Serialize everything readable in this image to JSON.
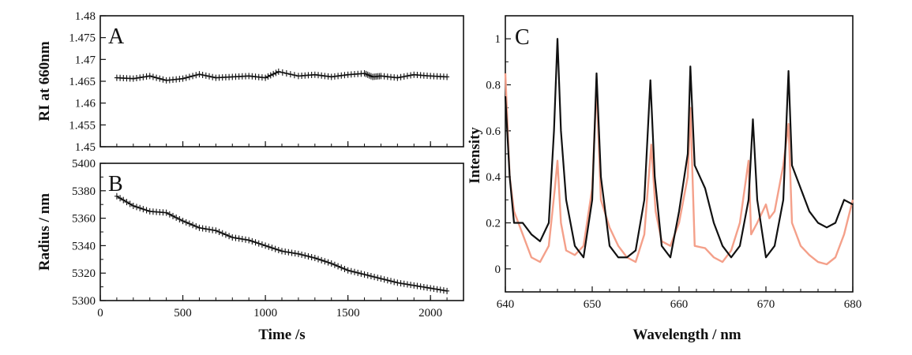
{
  "colors": {
    "black": "#111111",
    "salmon": "#f4a08a"
  },
  "chart_data": [
    {
      "panel": "A",
      "type": "scatter",
      "marker": "plus-line",
      "xlim": [
        0,
        2200
      ],
      "ylim": [
        1.45,
        1.48
      ],
      "yticks": [
        "1.45",
        "1.455",
        "1.46",
        "1.465",
        "1.47",
        "1.475",
        "1.48"
      ],
      "xlabel": "",
      "ylabel": "RI at 660nm",
      "x": [
        100,
        200,
        300,
        400,
        500,
        600,
        700,
        800,
        900,
        1000,
        1080,
        1200,
        1300,
        1400,
        1500,
        1600,
        1650,
        1700,
        1800,
        1900,
        2000,
        2100
      ],
      "y": [
        1.4658,
        1.4656,
        1.4662,
        1.4652,
        1.4656,
        1.4666,
        1.4658,
        1.466,
        1.4662,
        1.4658,
        1.4672,
        1.4662,
        1.4665,
        1.466,
        1.4665,
        1.4668,
        1.466,
        1.4662,
        1.4658,
        1.4665,
        1.4662,
        1.466
      ]
    },
    {
      "panel": "B",
      "type": "scatter",
      "marker": "plus-line",
      "xlim": [
        0,
        2200
      ],
      "ylim": [
        5300,
        5400
      ],
      "xticks": [
        "0",
        "500",
        "1000",
        "1500",
        "2000"
      ],
      "yticks": [
        "5300",
        "5320",
        "5340",
        "5360",
        "5380",
        "5400"
      ],
      "xlabel": "Time /s",
      "ylabel": "Radius / nm",
      "x": [
        100,
        200,
        300,
        400,
        500,
        600,
        700,
        800,
        900,
        1000,
        1100,
        1200,
        1300,
        1400,
        1500,
        1600,
        1700,
        1800,
        1900,
        2000,
        2100
      ],
      "y": [
        5376,
        5369,
        5365,
        5364,
        5358,
        5353,
        5351,
        5346,
        5344,
        5340,
        5336,
        5334,
        5331,
        5327,
        5322,
        5319,
        5316,
        5313,
        5311,
        5309,
        5307
      ]
    },
    {
      "panel": "C",
      "type": "line",
      "xlim": [
        640,
        680
      ],
      "ylim": [
        -0.1,
        1.1
      ],
      "xticks": [
        "640",
        "650",
        "660",
        "670",
        "680"
      ],
      "yticks": [
        "0",
        "0.2",
        "0.4",
        "0.6",
        "0.8",
        "1"
      ],
      "xlabel": "Wavelength / nm",
      "ylabel": "Intensity",
      "series": [
        {
          "color": "#111111",
          "x": [
            640,
            640.5,
            641,
            642,
            643,
            644,
            645,
            645.6,
            646,
            646.4,
            647,
            648,
            649,
            650,
            650.5,
            651,
            652,
            653,
            654,
            655,
            656,
            656.7,
            657.2,
            658,
            659,
            660,
            661,
            661.3,
            661.8,
            663,
            664,
            665,
            666,
            667,
            668,
            668.5,
            669,
            670,
            671,
            672,
            672.6,
            673,
            674,
            675,
            676,
            677,
            678,
            679,
            680
          ],
          "y": [
            0.75,
            0.4,
            0.2,
            0.2,
            0.15,
            0.12,
            0.2,
            0.6,
            1.0,
            0.6,
            0.3,
            0.1,
            0.05,
            0.3,
            0.85,
            0.4,
            0.1,
            0.05,
            0.05,
            0.08,
            0.3,
            0.82,
            0.4,
            0.1,
            0.05,
            0.25,
            0.5,
            0.88,
            0.45,
            0.35,
            0.2,
            0.1,
            0.05,
            0.1,
            0.3,
            0.65,
            0.3,
            0.05,
            0.1,
            0.3,
            0.86,
            0.45,
            0.35,
            0.25,
            0.2,
            0.18,
            0.2,
            0.3,
            0.28
          ]
        },
        {
          "color": "#f4a08a",
          "x": [
            640,
            640.5,
            641,
            642,
            643,
            644,
            645,
            645.7,
            646,
            646.4,
            647,
            648,
            649,
            650,
            650.5,
            651,
            652,
            653,
            654,
            655,
            656,
            656.8,
            657.3,
            658,
            659,
            660,
            661,
            661.3,
            661.8,
            663,
            664,
            665,
            666,
            667,
            668,
            668.3,
            669,
            670,
            670.4,
            671,
            672,
            672.6,
            673,
            674,
            675,
            676,
            677,
            678,
            679,
            680
          ],
          "y": [
            0.85,
            0.4,
            0.25,
            0.15,
            0.05,
            0.03,
            0.1,
            0.35,
            0.47,
            0.2,
            0.08,
            0.06,
            0.1,
            0.35,
            0.8,
            0.3,
            0.18,
            0.1,
            0.05,
            0.03,
            0.15,
            0.54,
            0.25,
            0.12,
            0.1,
            0.2,
            0.4,
            0.7,
            0.1,
            0.09,
            0.05,
            0.03,
            0.08,
            0.2,
            0.47,
            0.15,
            0.2,
            0.28,
            0.22,
            0.25,
            0.45,
            0.63,
            0.2,
            0.1,
            0.06,
            0.03,
            0.02,
            0.05,
            0.15,
            0.3
          ]
        }
      ]
    }
  ]
}
